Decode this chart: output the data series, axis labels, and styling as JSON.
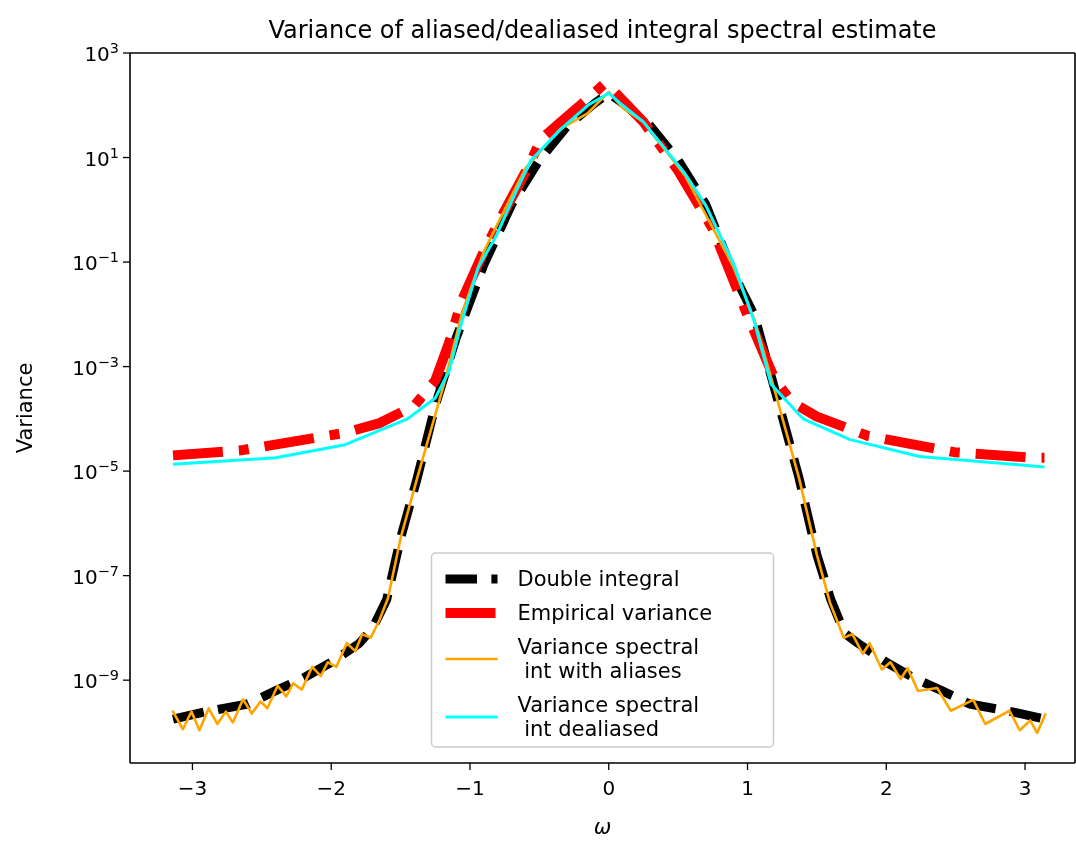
{
  "chart_data": {
    "type": "line",
    "title": "Variance of aliased/dealiased integral spectral estimate",
    "xlabel": "ω",
    "ylabel": "Variance",
    "log": "y",
    "xlim": [
      -3.45,
      3.36
    ],
    "ylim": [
      2.6e-11,
      1000
    ],
    "xticks": [
      {
        "value": -3,
        "label": "−3"
      },
      {
        "value": -2,
        "label": "−2"
      },
      {
        "value": -1,
        "label": "−1"
      },
      0,
      1,
      2,
      3
    ],
    "yticks": [
      {
        "value": 1e-09,
        "label": "10$^{−9}$"
      },
      {
        "value": 1e-07,
        "label": "10$^{−7}$"
      },
      {
        "value": 1e-05,
        "label": "10$^{−5}$"
      },
      {
        "value": 0.001,
        "label": "10$^{−3}$"
      },
      {
        "value": 0.1,
        "label": "10$^{−1}$"
      },
      {
        "value": 10,
        "label": "10$^{1}$"
      },
      {
        "value": 1000,
        "label": "10$^{3}$"
      }
    ],
    "grid": false,
    "legend": "lower center",
    "series": [
      {
        "name": "Double integral",
        "color": "#000000",
        "line_style": "dashed",
        "x": [
          -3.14,
          -2.9,
          -2.6,
          -2.4,
          -2.2,
          -2.0,
          -1.8,
          -1.7,
          -1.6,
          -1.5,
          -1.38,
          -1.25,
          -1.1,
          -0.9,
          -0.7,
          -0.5,
          -0.3,
          -0.1,
          0,
          0.1,
          0.3,
          0.5,
          0.7,
          0.9,
          1.05,
          1.24,
          1.37,
          1.5,
          1.6,
          1.7,
          1.8,
          2.0,
          2.2,
          2.4,
          2.6,
          2.9,
          3.14
        ],
        "values": [
          1.8e-10,
          2.5e-10,
          3.5e-10,
          6.3e-10,
          1.1e-09,
          2.2e-09,
          5e-09,
          1e-08,
          3.5e-08,
          5.2e-07,
          7.4e-06,
          0.00018,
          0.0035,
          0.089,
          1.26,
          8.9,
          40,
          110,
          170,
          110,
          40,
          8.9,
          1.26,
          0.059,
          0.0095,
          0.00014,
          7.6e-06,
          2.5e-07,
          3.5e-08,
          7.9e-09,
          5e-09,
          2.2e-09,
          1.1e-09,
          6.3e-10,
          3.5e-10,
          2.5e-10,
          1.8e-10
        ]
      },
      {
        "name": "Empirical variance",
        "color": "#ff0000",
        "line_style": "dashed",
        "x": [
          -3.14,
          -2.65,
          -1.9,
          -1.65,
          -1.4,
          -1.25,
          -1.15,
          -1.06,
          -0.91,
          -0.78,
          -0.58,
          -0.49,
          -0.345,
          -0.17,
          -0.03,
          0.025,
          0.25,
          0.5,
          0.75,
          1.0,
          1.2,
          1.32,
          1.5,
          1.87,
          2.49,
          3.06,
          3.14
        ],
        "values": [
          2e-05,
          2.5e-05,
          5.4e-05,
          8.3e-05,
          0.00018,
          0.00054,
          0.0029,
          0.018,
          0.14,
          0.68,
          6.6,
          22,
          48,
          120,
          260,
          200,
          48,
          5.6,
          0.43,
          0.0095,
          0.00054,
          0.00021,
          0.00011,
          4.7e-05,
          2.3e-05,
          1.8e-05,
          1.8e-05
        ]
      },
      {
        "name": "Variance spectral\n int with aliases",
        "color": "#ffa500",
        "line_style": "solid",
        "x": [
          -3.144,
          -3.069,
          -3.007,
          -2.95,
          -2.883,
          -2.821,
          -2.759,
          -2.709,
          -2.635,
          -2.572,
          -2.51,
          -2.46,
          -2.386,
          -2.324,
          -2.274,
          -2.212,
          -2.137,
          -2.075,
          -2.025,
          -1.963,
          -1.888,
          -1.826,
          -1.777,
          -1.715,
          -1.653,
          -1.591,
          -1.5,
          -1.38,
          -1.18,
          -1.06,
          -0.9,
          -0.6,
          -0.35,
          -0.15,
          0,
          0.1,
          0.25,
          0.55,
          0.9,
          1.05,
          1.2,
          1.37,
          1.5,
          1.595,
          1.694,
          1.756,
          1.83,
          1.88,
          1.968,
          2.03,
          2.104,
          2.154,
          2.229,
          2.366,
          2.465,
          2.627,
          2.713,
          2.888,
          2.962,
          3.037,
          3.087,
          3.149
        ],
        "values": [
          2.6e-10,
          1.15e-10,
          2.5e-10,
          1.1e-10,
          2.9e-10,
          1.45e-10,
          2.5e-10,
          1.55e-10,
          4.3e-10,
          2.3e-10,
          3.9e-10,
          2.9e-10,
          7.8e-10,
          4.9e-10,
          8.7e-10,
          6.6e-10,
          1.8e-09,
          1.2e-09,
          2.2e-09,
          1.8e-09,
          5.1e-09,
          3.6e-09,
          7.6e-09,
          6.5e-09,
          1.4e-08,
          3.7e-08,
          5.2e-07,
          7.4e-06,
          0.00054,
          0.01,
          0.16,
          6.3,
          35,
          71,
          180,
          89,
          48,
          4.5,
          0.079,
          0.0079,
          0.00032,
          7.6e-06,
          2.5e-07,
          3e-08,
          6.5e-09,
          7.6e-09,
          3.2e-09,
          5.1e-09,
          1.6e-09,
          2.2e-09,
          1.05e-09,
          1.7e-09,
          6.2e-10,
          7.1e-10,
          2.6e-10,
          4.2e-10,
          1.45e-10,
          2.6e-10,
          1.1e-10,
          1.7e-10,
          9.8e-11,
          2.3e-10
        ]
      },
      {
        "name": "Variance spectral\n int dealiased",
        "color": "#00ffff",
        "line_style": "solid",
        "x": [
          -3.14,
          -2.4,
          -1.9,
          -1.45,
          -1.25,
          -1.15,
          -1.06,
          -0.94,
          -0.81,
          -0.68,
          -0.56,
          -0.345,
          -0.15,
          0,
          0.1,
          0.25,
          0.55,
          0.7,
          0.9,
          1.05,
          1.17,
          1.4,
          1.74,
          2.24,
          3.14
        ],
        "values": [
          1.35e-05,
          1.8e-05,
          3.2e-05,
          0.0001,
          0.00025,
          0.00083,
          0.0071,
          0.079,
          0.32,
          1.9,
          8.9,
          35,
          100,
          170,
          100,
          48,
          4.9,
          1.2,
          0.093,
          0.0071,
          0.00046,
          0.0001,
          4e-05,
          1.9e-05,
          1.2e-05
        ]
      }
    ]
  }
}
